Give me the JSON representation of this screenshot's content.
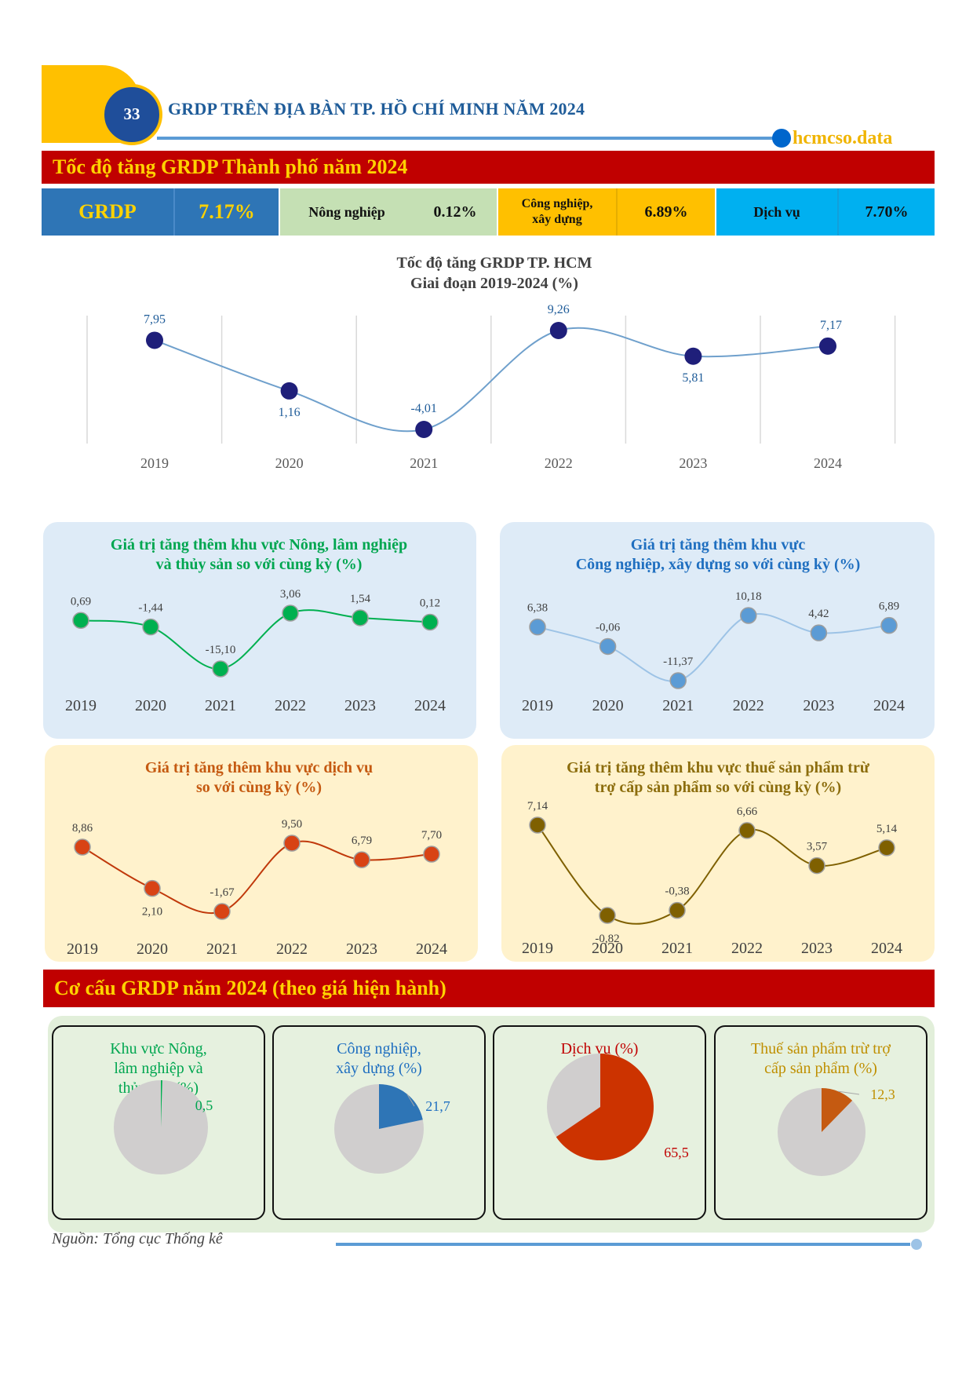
{
  "header": {
    "page_number": "33",
    "title": "GRDP TRÊN ĐỊA BÀN TP. HỒ CHÍ MINH NĂM 2024",
    "brand": "hcmcso.data"
  },
  "section1": {
    "title": "Tốc độ tăng GRDP Thành phố năm 2024"
  },
  "kpis": [
    {
      "label": "GRDP",
      "value": "7.17%"
    },
    {
      "label": "Nông nghiệp",
      "value": "0.12%"
    },
    {
      "label_line1": "Công nghiệp,",
      "label_line2": "xây dựng",
      "value": "6.89%"
    },
    {
      "label": "Dịch vụ",
      "value": "7.70%"
    }
  ],
  "colors": {
    "red_bar": "#C00000",
    "bar_text": "#FFD200",
    "grdp": "#2E75B6",
    "agri": "#C5E0B4",
    "industry": "#FFC000",
    "service": "#00B0F0",
    "blue_card": "#DEEBF7",
    "yellow_card": "#FFF2CC",
    "pie_bg": "#E2EFDA",
    "pie_rest": "#D0CECE"
  },
  "chart_data": [
    {
      "id": "main",
      "type": "line",
      "title": "Tốc độ tăng GRDP TP. HCM",
      "subtitle": "Giai đoạn 2019-2024 (%)",
      "categories": [
        "2019",
        "2020",
        "2021",
        "2022",
        "2023",
        "2024"
      ],
      "values": [
        7.95,
        1.16,
        -4.01,
        9.26,
        5.81,
        7.17
      ],
      "labels": [
        "7,95",
        "1,16",
        "-4,01",
        "9,26",
        "5,81",
        "7,17"
      ],
      "label_pos": [
        "above",
        "below",
        "above",
        "above",
        "below",
        "above"
      ],
      "ylim": [
        -4.01,
        9.26
      ],
      "marker_color": "#1F1F7A",
      "line_color": "#6FA0CC",
      "label_color": "#1F5C99",
      "grid": "vertical"
    },
    {
      "id": "agri",
      "type": "line",
      "title_line1": "Giá trị tăng thêm khu vực Nông, lâm nghiệp",
      "title_line2": "và thủy sản so với cùng kỳ (%)",
      "categories": [
        "2019",
        "2020",
        "2021",
        "2022",
        "2023",
        "2024"
      ],
      "values": [
        0.69,
        -1.44,
        -15.1,
        3.06,
        1.54,
        0.12
      ],
      "labels": [
        "0,69",
        "-1,44",
        "-15,10",
        "3,06",
        "1,54",
        "0,12"
      ],
      "ylim": [
        -15.1,
        3.06
      ],
      "title_color": "#00A650",
      "marker_color": "#00B050",
      "line_color": "#00B050"
    },
    {
      "id": "industry",
      "type": "line",
      "title_line1": "Giá trị tăng thêm khu vực",
      "title_line2": "Công nghiệp, xây dựng so với cùng kỳ (%)",
      "categories": [
        "2019",
        "2020",
        "2021",
        "2022",
        "2023",
        "2024"
      ],
      "values": [
        6.38,
        -0.06,
        -11.37,
        10.18,
        4.42,
        6.89
      ],
      "labels": [
        "6,38",
        "-0,06",
        "-11,37",
        "10,18",
        "4,42",
        "6,89"
      ],
      "ylim": [
        -11.37,
        10.18
      ],
      "title_color": "#1F6FC0",
      "marker_color": "#5B9BD5",
      "line_color": "#9DC3E6"
    },
    {
      "id": "service",
      "type": "line",
      "title_line1": "Giá trị tăng thêm khu vực dịch vụ",
      "title_line2": "so với cùng kỳ (%)",
      "categories": [
        "2019",
        "2020",
        "2021",
        "2022",
        "2023",
        "2024"
      ],
      "values": [
        8.86,
        2.1,
        -1.67,
        9.5,
        6.79,
        7.7
      ],
      "labels": [
        "8,86",
        "2,10",
        "-1,67",
        "9,50",
        "6,79",
        "7,70"
      ],
      "ylim": [
        -1.67,
        9.5
      ],
      "title_color": "#C55A11",
      "marker_color": "#D84315",
      "line_color": "#C0390B"
    },
    {
      "id": "tax",
      "type": "line",
      "title_line1": "Giá trị tăng thêm khu vực thuế sản phẩm trừ",
      "title_line2": "trợ cấp sản phẩm so với cùng kỳ (%)",
      "categories": [
        "2019",
        "2020",
        "2021",
        "2022",
        "2023",
        "2024"
      ],
      "values": [
        7.14,
        -0.82,
        -0.38,
        6.66,
        3.57,
        5.14
      ],
      "labels": [
        "7,14",
        "-0,82",
        "-0,38",
        "6,66",
        "3,57",
        "5,14"
      ],
      "ylim": [
        -0.82,
        7.14
      ],
      "title_color": "#8C6D0D",
      "marker_color": "#7F6000",
      "line_color": "#7F6000"
    },
    {
      "id": "structure",
      "type": "pie",
      "section_title": "Cơ cấu GRDP năm 2024 (theo giá hiện hành)",
      "slices": [
        {
          "title_lines": [
            "Khu vực Nông,",
            "lâm nghiệp và",
            "thủy sản (%)"
          ],
          "value": 0.5,
          "label": "0,5",
          "color": "#00B050",
          "title_color": "#00A650"
        },
        {
          "title_lines": [
            "Công nghiệp,",
            "xây dựng (%)"
          ],
          "value": 21.7,
          "label": "21,7",
          "color": "#2E75B6",
          "title_color": "#1F6FC0"
        },
        {
          "title_lines": [
            "Dịch vụ (%)"
          ],
          "value": 65.5,
          "label": "65,5",
          "color": "#CC3300",
          "title_color": "#C00000"
        },
        {
          "title_lines": [
            "Thuế sản phẩm trừ trợ",
            "cấp sản phẩm (%)"
          ],
          "value": 12.3,
          "label": "12,3",
          "color": "#C55A11",
          "title_color": "#BF8F00"
        }
      ]
    }
  ],
  "footer": {
    "source": "Nguồn: Tổng cục Thống kê"
  }
}
